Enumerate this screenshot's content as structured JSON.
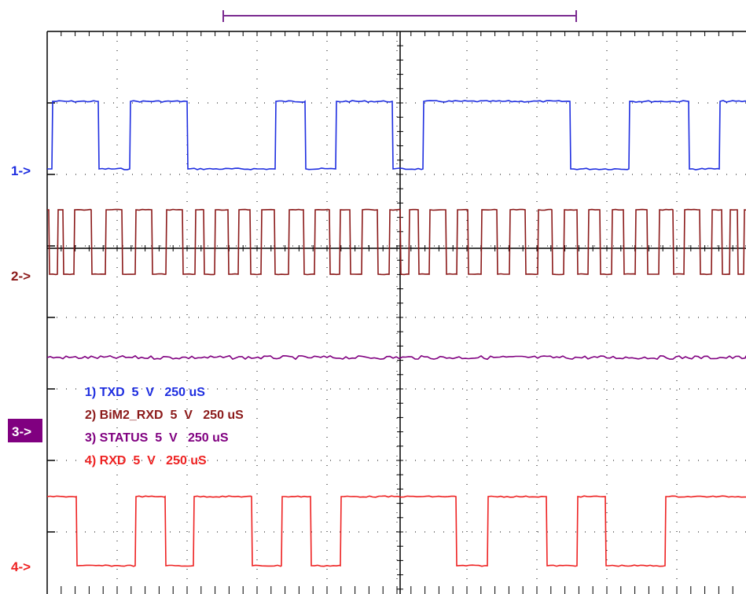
{
  "chart_data": {
    "type": "line",
    "title": "",
    "xlabel": "",
    "ylabel": "",
    "grid": true,
    "x_divisions": 10,
    "y_divisions": 8,
    "legend_placement": "center-left",
    "channels": [
      {
        "marker": "1->",
        "label": "1) TXD  5  V   250 uS",
        "color": "#1e2ee0",
        "edges": [
          66,
          125,
          165,
          238,
          350,
          388,
          427,
          499,
          538,
          725,
          800,
          876,
          915
        ],
        "start_level": 0,
        "noise": 1.0
      },
      {
        "marker": "2->",
        "label": "2) BiM2_RXD  5  V   250 uS",
        "color": "#8b1a1a",
        "edges": [
          62,
          73,
          80,
          94,
          116,
          134,
          155,
          172,
          193,
          211,
          232,
          248,
          259,
          273,
          290,
          303,
          318,
          332,
          349,
          367,
          386,
          400,
          419,
          432,
          445,
          460,
          480,
          495,
          509,
          520,
          532,
          546,
          567,
          581,
          595,
          612,
          632,
          648,
          668,
          684,
          702,
          717,
          734,
          748,
          763,
          778,
          793,
          808,
          823,
          838,
          856,
          870,
          890,
          905,
          918,
          928,
          938,
          946
        ],
        "start_level": 1,
        "noise": 0.5
      },
      {
        "marker": "3->",
        "label": "3) STATUS  5  V   250 uS",
        "color": "#800080",
        "edges": [],
        "start_level": 1,
        "noise": 2.2
      },
      {
        "marker": "4->",
        "label": "4) RXD  5  V   250 uS",
        "color": "#ee2222",
        "edges": [
          97,
          172,
          210,
          246,
          320,
          358,
          395,
          433,
          580,
          620,
          695,
          734,
          770,
          846
        ],
        "start_level": 1,
        "noise": 0.8
      }
    ],
    "cursor_bar_color": "#7a2a90"
  }
}
